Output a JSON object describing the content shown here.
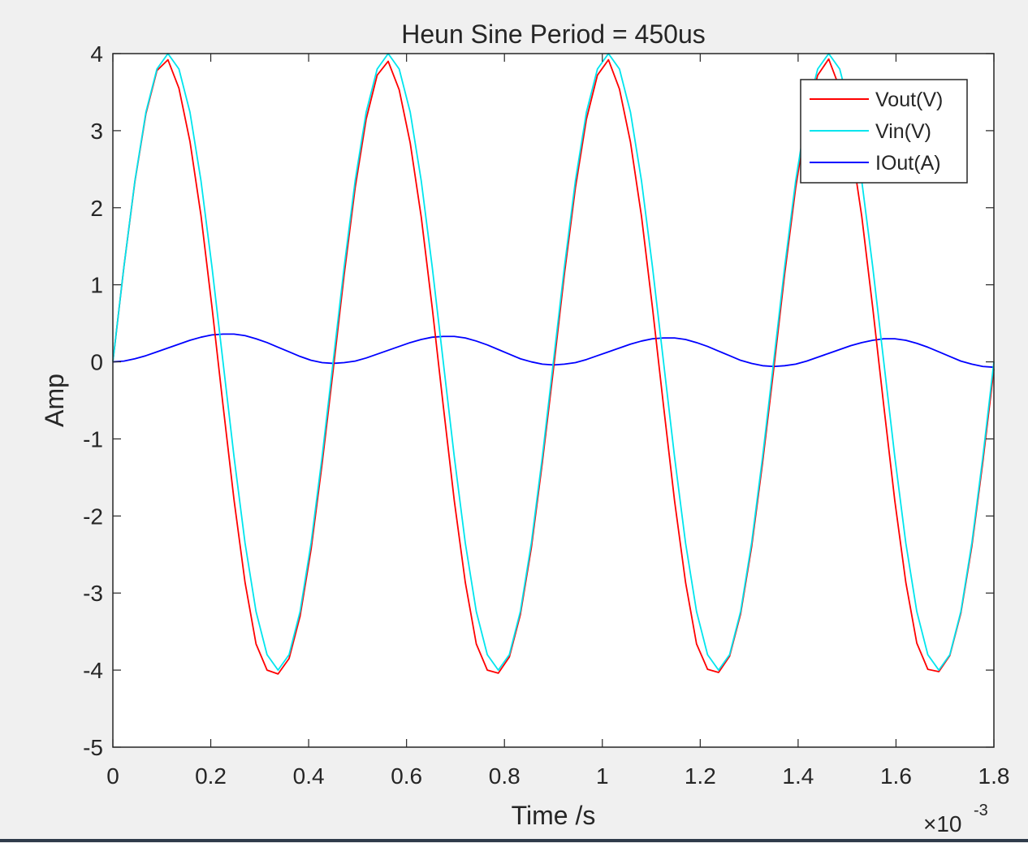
{
  "chart_data": {
    "type": "line",
    "title": "Heun Sine Period = 450us",
    "xlabel": "Time /s",
    "ylabel": "Amp",
    "x_exponent_label": "×10",
    "x_exponent_power": "-3",
    "x_scale_factor": 0.001,
    "xlim": [
      0,
      1.8
    ],
    "ylim": [
      -5,
      4
    ],
    "x_ticks": [
      0,
      0.2,
      0.4,
      0.6,
      0.8,
      1,
      1.2,
      1.4,
      1.6,
      1.8
    ],
    "x_tick_labels": [
      "0",
      "0.2",
      "0.4",
      "0.6",
      "0.8",
      "1",
      "1.2",
      "1.4",
      "1.6",
      "1.8"
    ],
    "y_ticks": [
      -5,
      -4,
      -3,
      -2,
      -1,
      0,
      1,
      2,
      3,
      4
    ],
    "y_tick_labels": [
      "-5",
      "-4",
      "-3",
      "-2",
      "-1",
      "0",
      "1",
      "2",
      "3",
      "4"
    ],
    "grid": false,
    "legend_position": "top-right",
    "x": [
      0,
      0.0225,
      0.045,
      0.0675,
      0.09,
      0.1125,
      0.135,
      0.1575,
      0.18,
      0.2025,
      0.225,
      0.2475,
      0.27,
      0.2925,
      0.315,
      0.3375,
      0.36,
      0.3825,
      0.405,
      0.4275,
      0.45,
      0.4725,
      0.495,
      0.5175,
      0.54,
      0.5625,
      0.585,
      0.6075,
      0.63,
      0.6525,
      0.675,
      0.6975,
      0.72,
      0.7425,
      0.765,
      0.7875,
      0.81,
      0.8325,
      0.855,
      0.8775,
      0.9,
      0.9225,
      0.945,
      0.9675,
      0.99,
      1.0125,
      1.035,
      1.0575,
      1.08,
      1.1025,
      1.125,
      1.1475,
      1.17,
      1.1925,
      1.215,
      1.2375,
      1.26,
      1.2825,
      1.305,
      1.3275,
      1.35,
      1.3725,
      1.395,
      1.4175,
      1.44,
      1.4625,
      1.485,
      1.5075,
      1.53,
      1.5525,
      1.575,
      1.5975,
      1.62,
      1.6425,
      1.665,
      1.6875,
      1.71,
      1.7325,
      1.755,
      1.7775,
      1.8
    ],
    "series": [
      {
        "name": "Vout(V)",
        "color": "#ff0000",
        "values": [
          0,
          1.23,
          2.34,
          3.22,
          3.78,
          3.92,
          3.55,
          2.86,
          1.9,
          0.71,
          -0.56,
          -1.79,
          -2.86,
          -3.66,
          -4.0,
          -4.05,
          -3.85,
          -3.3,
          -2.43,
          -1.32,
          -0.11,
          1.13,
          2.26,
          3.15,
          3.72,
          3.9,
          3.53,
          2.84,
          1.88,
          0.7,
          -0.57,
          -1.8,
          -2.86,
          -3.66,
          -4.0,
          -4.04,
          -3.83,
          -3.28,
          -2.41,
          -1.3,
          -0.1,
          1.14,
          2.26,
          3.15,
          3.72,
          3.92,
          3.54,
          2.85,
          1.89,
          0.7,
          -0.57,
          -1.8,
          -2.86,
          -3.66,
          -3.99,
          -4.03,
          -3.82,
          -3.27,
          -2.4,
          -1.3,
          -0.1,
          1.14,
          2.26,
          3.15,
          3.72,
          3.93,
          3.55,
          2.85,
          1.89,
          0.7,
          -0.57,
          -1.8,
          -2.86,
          -3.65,
          -3.99,
          -4.02,
          -3.81,
          -3.26,
          -2.39,
          -1.29,
          -0.09
        ]
      },
      {
        "name": "Vin(V)",
        "color": "#00e5ee",
        "values": [
          0,
          1.23,
          2.35,
          3.24,
          3.8,
          4.0,
          3.8,
          3.24,
          2.35,
          1.23,
          0,
          -1.23,
          -2.35,
          -3.24,
          -3.8,
          -4.0,
          -3.8,
          -3.24,
          -2.35,
          -1.23,
          0,
          1.23,
          2.35,
          3.24,
          3.8,
          4.0,
          3.8,
          3.24,
          2.35,
          1.23,
          0,
          -1.23,
          -2.35,
          -3.24,
          -3.8,
          -4.0,
          -3.8,
          -3.24,
          -2.35,
          -1.23,
          0,
          1.23,
          2.35,
          3.24,
          3.8,
          4.0,
          3.8,
          3.24,
          2.35,
          1.23,
          0,
          -1.23,
          -2.35,
          -3.24,
          -3.8,
          -4.0,
          -3.8,
          -3.24,
          -2.35,
          -1.23,
          0,
          1.23,
          2.35,
          3.24,
          3.8,
          4.0,
          3.8,
          3.24,
          2.35,
          1.23,
          0,
          -1.23,
          -2.35,
          -3.24,
          -3.8,
          -4.0,
          -3.8,
          -3.24,
          -2.35,
          -1.23,
          0
        ]
      },
      {
        "name": "IOut(A)",
        "color": "#0000ff",
        "values": [
          0,
          0.01,
          0.04,
          0.08,
          0.13,
          0.18,
          0.23,
          0.28,
          0.32,
          0.35,
          0.36,
          0.36,
          0.34,
          0.3,
          0.25,
          0.19,
          0.13,
          0.07,
          0.02,
          -0.01,
          -0.02,
          -0.01,
          0.01,
          0.05,
          0.1,
          0.15,
          0.2,
          0.25,
          0.29,
          0.32,
          0.33,
          0.33,
          0.31,
          0.27,
          0.22,
          0.16,
          0.1,
          0.04,
          0.0,
          -0.03,
          -0.04,
          -0.03,
          -0.01,
          0.03,
          0.08,
          0.13,
          0.18,
          0.23,
          0.27,
          0.3,
          0.31,
          0.31,
          0.29,
          0.25,
          0.2,
          0.14,
          0.08,
          0.02,
          -0.02,
          -0.05,
          -0.06,
          -0.05,
          -0.03,
          0.01,
          0.06,
          0.11,
          0.16,
          0.21,
          0.25,
          0.28,
          0.3,
          0.3,
          0.28,
          0.24,
          0.19,
          0.13,
          0.07,
          0.01,
          -0.03,
          -0.06,
          -0.07
        ]
      }
    ]
  }
}
